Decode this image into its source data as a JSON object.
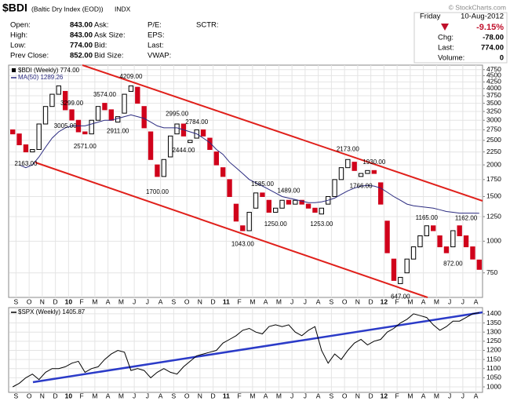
{
  "header": {
    "title": "$BDI",
    "subtitle": "(Baltic Dry Index (EOD))",
    "exchange": "INDX",
    "copyright": "© StockCharts.com",
    "quote": [
      [
        {
          "label": "Open:",
          "value": "843.00"
        },
        {
          "label": "High:",
          "value": "843.00"
        },
        {
          "label": "Low:",
          "value": "774.00"
        },
        {
          "label": "Prev Close:",
          "value": "852.00"
        }
      ],
      [
        {
          "label": "Ask:"
        },
        {
          "label": "Ask Size:"
        },
        {
          "label": "Bid:"
        },
        {
          "label": "Bid Size:"
        }
      ],
      [
        {
          "label": "P/E:"
        },
        {
          "label": "EPS:"
        },
        {
          "label": "Last:"
        },
        {
          "label": "VWAP:"
        }
      ],
      [
        {
          "label": "SCTR:"
        }
      ]
    ],
    "date_day": "Friday",
    "date": "10-Aug-2012",
    "change_pct": "-9.15%",
    "summary": [
      {
        "label": "Chg:",
        "value": "-78.00"
      },
      {
        "label": "Last:",
        "value": "774.00"
      },
      {
        "label": "Volume:",
        "value": "0"
      }
    ]
  },
  "chart_data": [
    {
      "type": "candlestick",
      "log_scale": true,
      "grid": true,
      "categories": [
        null,
        "S",
        null,
        "O",
        null,
        "N",
        null,
        "D",
        null,
        "10",
        null,
        "F",
        null,
        "M",
        null,
        "A",
        null,
        "M",
        null,
        "J",
        null,
        "J",
        null,
        "A",
        null,
        "S",
        null,
        "O",
        null,
        "N",
        null,
        "D",
        null,
        "11",
        null,
        "F",
        null,
        "M",
        null,
        "A",
        null,
        "M",
        null,
        "J",
        null,
        "J",
        null,
        "A",
        null,
        "S",
        null,
        "O",
        null,
        "N",
        null,
        "D",
        null,
        "12",
        null,
        "F",
        null,
        "M",
        null,
        "A",
        null,
        "M",
        null,
        "J",
        null,
        "J",
        null,
        "A"
      ],
      "candles": {
        "name": "$BDI (Weekly) 774.00",
        "up_color": "#000000",
        "down_color": "#d0021b",
        "open": [
          2750,
          2650,
          2400,
          2250,
          2300,
          2900,
          3400,
          3800,
          3900,
          3300,
          3000,
          2700,
          2650,
          3000,
          3500,
          3300,
          2950,
          3200,
          3900,
          4050,
          3400,
          2700,
          2000,
          1800,
          2150,
          2650,
          2900,
          2450,
          2550,
          2750,
          2550,
          2250,
          1950,
          1750,
          1400,
          1150,
          1100,
          1350,
          1550,
          1450,
          1300,
          1350,
          1450,
          1400,
          1450,
          1400,
          1350,
          1280,
          1400,
          1500,
          1750,
          1950,
          2050,
          1800,
          1850,
          1900,
          1700,
          1200,
          850,
          680,
          750,
          850,
          950,
          1050,
          1150,
          1050,
          950,
          950,
          1150,
          1050,
          950,
          843
        ],
        "close": [
          2650,
          2400,
          2250,
          2300,
          2900,
          3400,
          3800,
          4100,
          3299,
          3005,
          2700,
          2650,
          3000,
          3400,
          3300,
          3000,
          3100,
          3800,
          4100,
          3500,
          2800,
          2100,
          1800,
          2100,
          2600,
          2900,
          2600,
          2500,
          2750,
          2600,
          2300,
          2000,
          1800,
          1500,
          1200,
          1100,
          1300,
          1550,
          1500,
          1300,
          1350,
          1450,
          1400,
          1450,
          1400,
          1350,
          1300,
          1350,
          1500,
          1750,
          1950,
          2100,
          1900,
          1850,
          1900,
          1850,
          1400,
          900,
          700,
          720,
          850,
          950,
          1050,
          1150,
          1100,
          950,
          900,
          1100,
          1050,
          950,
          850,
          774
        ]
      },
      "series": [
        {
          "name": "MA(50) 1289.26",
          "color": "#2b2b80",
          "values": [
            null,
            2000,
            1950,
            2000,
            2150,
            2350,
            2550,
            2700,
            2800,
            2850,
            2850,
            2850,
            2900,
            2950,
            3000,
            3000,
            3050,
            3100,
            3150,
            3100,
            3050,
            2950,
            2850,
            2800,
            2800,
            2800,
            2750,
            2700,
            2650,
            2550,
            2450,
            2300,
            2200,
            2050,
            1950,
            1850,
            1750,
            1700,
            1650,
            1600,
            1550,
            1500,
            1480,
            1460,
            1440,
            1420,
            1420,
            1430,
            1450,
            1480,
            1530,
            1580,
            1620,
            1650,
            1660,
            1650,
            1620,
            1560,
            1500,
            1450,
            1400,
            1380,
            1370,
            1360,
            1350,
            1330,
            1310,
            1300,
            1290,
            1290,
            1290,
            1289.26
          ]
        }
      ],
      "ylim": [
        600,
        4950
      ],
      "yticks": [
        750,
        1000,
        1250,
        1500,
        1750,
        2000,
        2250,
        2500,
        2750,
        3000,
        3250,
        3500,
        3750,
        4000,
        4250,
        4500,
        4750
      ],
      "annotations": [
        {
          "label": "2163.00",
          "value": 2163
        },
        {
          "label": "3299.00",
          "value": 3299
        },
        {
          "label": "3005.00",
          "value": 3005
        },
        {
          "label": "2571.00",
          "value": 2571
        },
        {
          "label": "3574.00",
          "value": 3574
        },
        {
          "label": "2911.00",
          "value": 2911
        },
        {
          "label": "4209.00",
          "value": 4209
        },
        {
          "label": "1700.00",
          "value": 1700
        },
        {
          "label": "2995.00",
          "value": 2995
        },
        {
          "label": "2444.00",
          "value": 2444
        },
        {
          "label": "2784.00",
          "value": 2784
        },
        {
          "label": "1043.00",
          "value": 1043
        },
        {
          "label": "1585.00",
          "value": 1585
        },
        {
          "label": "1250.00",
          "value": 1250
        },
        {
          "label": "1489.00",
          "value": 1489
        },
        {
          "label": "1253.00",
          "value": 1253
        },
        {
          "label": "2173.00",
          "value": 2173
        },
        {
          "label": "1766.00",
          "value": 1766
        },
        {
          "label": "1930.00",
          "value": 1930
        },
        {
          "label": "647.00",
          "value": 647
        },
        {
          "label": "1165.00",
          "value": 1165
        },
        {
          "label": "872.00",
          "value": 872
        },
        {
          "label": "1162.00",
          "value": 1162
        }
      ]
    },
    {
      "type": "line",
      "grid": true,
      "categories": [
        null,
        "S",
        null,
        "O",
        null,
        "N",
        null,
        "D",
        null,
        "10",
        null,
        "F",
        null,
        "M",
        null,
        "A",
        null,
        "M",
        null,
        "J",
        null,
        "J",
        null,
        "A",
        null,
        "S",
        null,
        "O",
        null,
        "N",
        null,
        "D",
        null,
        "11",
        null,
        "F",
        null,
        "M",
        null,
        "A",
        null,
        "M",
        null,
        "J",
        null,
        "J",
        null,
        "A",
        null,
        "S",
        null,
        "O",
        null,
        "N",
        null,
        "D",
        null,
        "12",
        null,
        "F",
        null,
        "M",
        null,
        "A",
        null,
        "M",
        null,
        "J",
        null,
        "J",
        null,
        "A"
      ],
      "series": [
        {
          "name": "$SPX (Weekly) 1405.87",
          "color": "#000000",
          "values": [
            1000,
            1020,
            1050,
            1070,
            1040,
            1080,
            1100,
            1100,
            1110,
            1130,
            1140,
            1080,
            1100,
            1110,
            1150,
            1180,
            1200,
            1190,
            1090,
            1100,
            1090,
            1050,
            1080,
            1100,
            1080,
            1070,
            1110,
            1140,
            1170,
            1180,
            1190,
            1200,
            1240,
            1260,
            1280,
            1310,
            1320,
            1300,
            1290,
            1330,
            1340,
            1330,
            1340,
            1300,
            1280,
            1310,
            1330,
            1200,
            1130,
            1180,
            1150,
            1200,
            1240,
            1260,
            1230,
            1250,
            1260,
            1300,
            1320,
            1350,
            1370,
            1400,
            1390,
            1380,
            1340,
            1310,
            1330,
            1360,
            1360,
            1380,
            1400,
            1405.87
          ]
        }
      ],
      "ylim": [
        970,
        1434
      ],
      "yticks": [
        1000,
        1050,
        1100,
        1150,
        1200,
        1250,
        1300,
        1350,
        1400
      ]
    }
  ]
}
